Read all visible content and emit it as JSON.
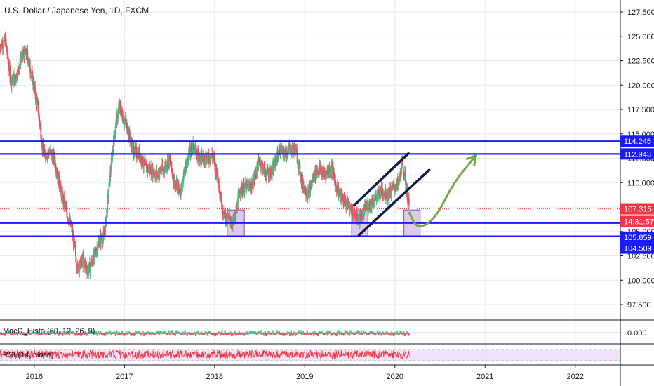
{
  "symbol_title": "U.S. Dollar / Japanese Yen, 1D, FXCM",
  "colors": {
    "up": "#53b987",
    "down": "#eb4d5c",
    "horizontal_line": "#1a1aff",
    "channel_line": "#131a4a",
    "arrow": "#6fa84a",
    "box_fill": "#d6b8e6",
    "box_stroke": "#7d4fa8",
    "price_tag": "#f23645",
    "countdown_tag": "#f23645",
    "line_tag": "#1a1aff",
    "rsi_band": "#e9d7f7",
    "rsi_line": "#f23645"
  },
  "chart_data": [
    {
      "type": "candlestick",
      "title": "U.S. Dollar / Japanese Yen, 1D, FXCM",
      "x_tick_labels": [
        "2016",
        "2017",
        "2018",
        "2019",
        "2020",
        "2021",
        "2022"
      ],
      "x_tick_years": [
        2016,
        2017,
        2018,
        2019,
        2020,
        2021,
        2022
      ],
      "y_tick_labels": [
        "127.500",
        "125.000",
        "122.500",
        "120.000",
        "117.500",
        "115.000",
        "112.500",
        "110.000",
        "107.500",
        "105.000",
        "102.500",
        "100.000",
        "97.500"
      ],
      "y_tick_values": [
        127.5,
        125.0,
        122.5,
        120.0,
        117.5,
        115.0,
        112.5,
        110.0,
        107.5,
        105.0,
        102.5,
        100.0,
        97.5
      ],
      "ylim": [
        95.8,
        128.6
      ],
      "xlim": [
        2015.62,
        2022.5
      ],
      "grid": true,
      "series": [
        {
          "points": [
            [
              2015.62,
              123.9
            ],
            [
              2015.68,
              124.6
            ],
            [
              2015.74,
              120.4
            ],
            [
              2015.8,
              120.9
            ],
            [
              2015.86,
              123.0
            ],
            [
              2015.92,
              123.2
            ],
            [
              2015.98,
              120.7
            ],
            [
              2016.04,
              117.8
            ],
            [
              2016.1,
              112.9
            ],
            [
              2016.16,
              113.1
            ],
            [
              2016.22,
              112.6
            ],
            [
              2016.3,
              108.9
            ],
            [
              2016.36,
              106.9
            ],
            [
              2016.42,
              105.1
            ],
            [
              2016.48,
              101.2
            ],
            [
              2016.54,
              102.0
            ],
            [
              2016.6,
              101.0
            ],
            [
              2016.66,
              102.3
            ],
            [
              2016.72,
              104.0
            ],
            [
              2016.78,
              104.6
            ],
            [
              2016.84,
              110.7
            ],
            [
              2016.88,
              114.3
            ],
            [
              2016.94,
              117.9
            ],
            [
              2016.98,
              116.8
            ],
            [
              2017.02,
              116.0
            ],
            [
              2017.1,
              113.3
            ],
            [
              2017.16,
              112.9
            ],
            [
              2017.24,
              111.4
            ],
            [
              2017.3,
              111.3
            ],
            [
              2017.36,
              110.8
            ],
            [
              2017.44,
              111.5
            ],
            [
              2017.5,
              112.3
            ],
            [
              2017.56,
              109.8
            ],
            [
              2017.62,
              109.1
            ],
            [
              2017.7,
              112.5
            ],
            [
              2017.76,
              113.7
            ],
            [
              2017.84,
              112.5
            ],
            [
              2017.9,
              112.6
            ],
            [
              2017.98,
              112.7
            ],
            [
              2018.04,
              110.4
            ],
            [
              2018.1,
              106.7
            ],
            [
              2018.16,
              106.2
            ],
            [
              2018.22,
              106.0
            ],
            [
              2018.28,
              109.3
            ],
            [
              2018.36,
              109.5
            ],
            [
              2018.42,
              109.8
            ],
            [
              2018.5,
              112.4
            ],
            [
              2018.56,
              111.0
            ],
            [
              2018.64,
              111.1
            ],
            [
              2018.72,
              113.4
            ],
            [
              2018.78,
              112.9
            ],
            [
              2018.84,
              113.5
            ],
            [
              2018.9,
              113.4
            ],
            [
              2018.97,
              110.0
            ],
            [
              2019.04,
              108.8
            ],
            [
              2019.1,
              110.7
            ],
            [
              2019.16,
              111.4
            ],
            [
              2019.22,
              110.8
            ],
            [
              2019.3,
              111.6
            ],
            [
              2019.36,
              109.3
            ],
            [
              2019.42,
              108.3
            ],
            [
              2019.48,
              107.8
            ],
            [
              2019.56,
              106.5
            ],
            [
              2019.62,
              106.3
            ],
            [
              2019.68,
              107.5
            ],
            [
              2019.74,
              108.0
            ],
            [
              2019.8,
              108.6
            ],
            [
              2019.86,
              109.2
            ],
            [
              2019.92,
              108.7
            ],
            [
              2019.98,
              109.5
            ],
            [
              2020.04,
              109.8
            ],
            [
              2020.08,
              112.0
            ],
            [
              2020.12,
              110.0
            ],
            [
              2020.16,
              107.3
            ]
          ]
        }
      ],
      "horizontal_levels": [
        {
          "label": "114.245",
          "value": 114.245
        },
        {
          "label": "112.943",
          "value": 112.943
        },
        {
          "label": "105.859",
          "value": 105.859
        },
        {
          "label": "104.509",
          "value": 104.509
        }
      ],
      "last_price": {
        "label": "107.315",
        "value": 107.315,
        "countdown": "14:31:57"
      },
      "channel": {
        "upper": [
          [
            2019.55,
            107.7
          ],
          [
            2020.15,
            113.0
          ]
        ],
        "lower": [
          [
            2019.6,
            104.6
          ],
          [
            2020.38,
            111.3
          ]
        ]
      },
      "highlight_boxes": [
        {
          "x": [
            2018.14,
            2018.33
          ],
          "y": [
            104.5,
            107.2
          ]
        },
        {
          "x": [
            2019.52,
            2019.7
          ],
          "y": [
            104.5,
            107.2
          ]
        },
        {
          "x": [
            2020.1,
            2020.28
          ],
          "y": [
            104.5,
            107.2
          ]
        }
      ],
      "projection_arrow": [
        [
          2020.16,
          106.9
        ],
        [
          2020.25,
          105.2
        ],
        [
          2020.45,
          106.3
        ],
        [
          2020.65,
          110.0
        ],
        [
          2020.9,
          112.8
        ]
      ]
    },
    {
      "type": "bar",
      "title": "MacD_Histo (60, 12, 26, 9)",
      "y_tick_labels": [
        "0.000"
      ],
      "y_tick_values": [
        0
      ]
    },
    {
      "type": "line",
      "title": "RSI (14, close)"
    }
  ]
}
